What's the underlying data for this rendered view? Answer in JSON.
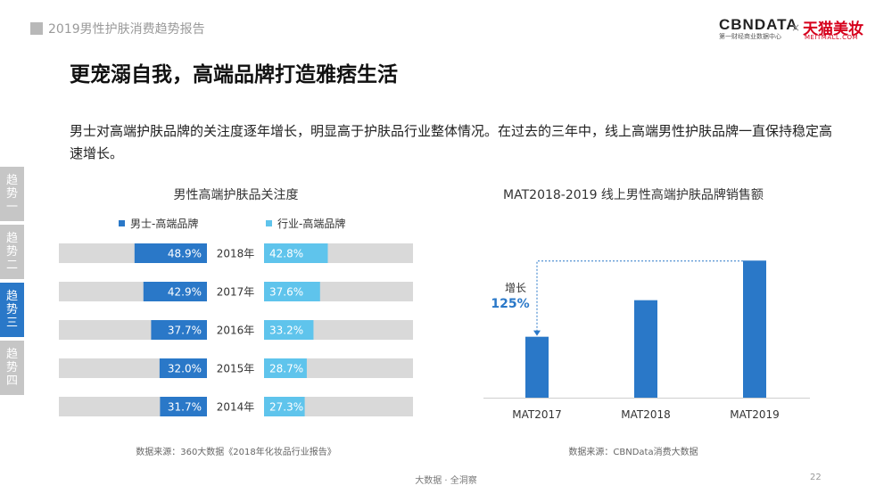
{
  "header": {
    "title": "2019男性护肤消费趋势报告"
  },
  "brand": {
    "cbn": "CBNDATA",
    "cbn_sub": "第一财经商业数据中心",
    "times": "×",
    "tmall": "天猫美妆",
    "tmall_sub": "MEITMALL.COM"
  },
  "main_title": "更宠溺自我，高端品牌打造雅痞生活",
  "description": "男士对高端护肤品牌的关注度逐年增长，明显高于护肤品行业整体情况。在过去的三年中，线上高端男性护肤品牌一直保持稳定高速增长。",
  "sidebar": {
    "tabs": [
      {
        "label": [
          "趋",
          "势",
          "一"
        ],
        "active": false
      },
      {
        "label": [
          "趋",
          "势",
          "二"
        ],
        "active": false
      },
      {
        "label": [
          "趋",
          "势",
          "三"
        ],
        "active": true
      },
      {
        "label": [
          "趋",
          "势",
          "四"
        ],
        "active": false
      }
    ]
  },
  "colors": {
    "men": "#2a78c8",
    "industry": "#5fc4ec",
    "track": "#d9d9d9",
    "sidebar_active": "#2a78c8",
    "bar": "#2a78c8",
    "growth": "#2a78c8"
  },
  "chart_data": [
    {
      "type": "bar",
      "title": "男性高端护肤品关注度",
      "orientation": "horizontal-butterfly",
      "categories": [
        "2018年",
        "2017年",
        "2016年",
        "2015年",
        "2014年"
      ],
      "series": [
        {
          "name": "男士-高端品牌",
          "values": [
            48.9,
            42.9,
            37.7,
            32.0,
            31.7
          ],
          "labels": [
            "48.9%",
            "42.9%",
            "37.7%",
            "32.0%",
            "31.7%"
          ]
        },
        {
          "name": "行业-高端品牌",
          "values": [
            42.8,
            37.6,
            33.2,
            28.7,
            27.3
          ],
          "labels": [
            "42.8%",
            "37.6%",
            "33.2%",
            "28.7%",
            "27.3%"
          ]
        }
      ],
      "ylim": [
        0,
        100
      ],
      "grid": false,
      "source": "数据来源：360大数据《2018年化妆品行业报告》"
    },
    {
      "type": "bar",
      "title": "MAT2018-2019 线上男性高端护肤品牌销售额",
      "categories": [
        "MAT2017",
        "MAT2018",
        "MAT2019"
      ],
      "values": [
        1.0,
        1.6,
        2.25
      ],
      "ylim": [
        0,
        2.4
      ],
      "annotation": {
        "label": "增长",
        "value": "125%"
      },
      "grid": false,
      "source": "数据来源：CBNData消费大数据"
    }
  ],
  "footer": {
    "tagline": "大数据 · 全洞察",
    "page": "22"
  }
}
